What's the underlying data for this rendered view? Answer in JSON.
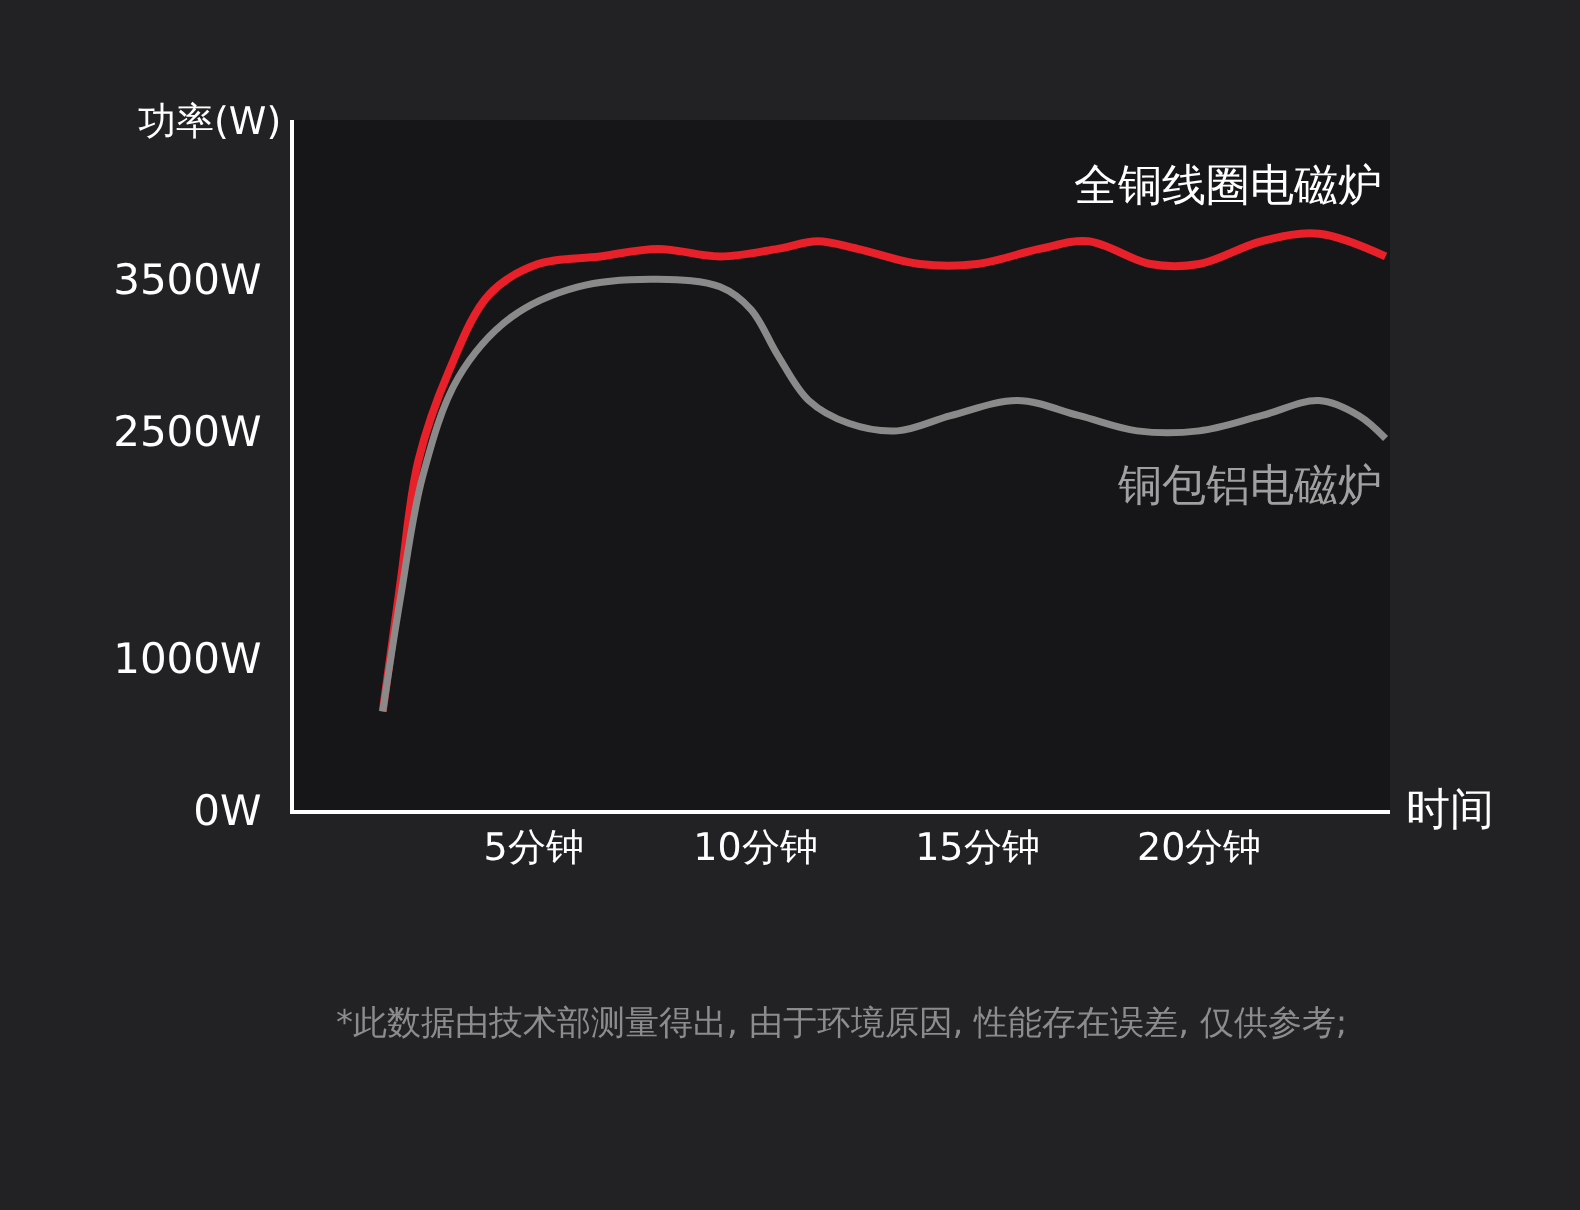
{
  "chart_data": {
    "type": "line",
    "xlabel": "时间",
    "ylabel": "功率(W)",
    "xlim": [
      -0.4,
      24.3
    ],
    "ylim": [
      0,
      4550
    ],
    "xticks": [
      {
        "value": 5,
        "label": "5分钟"
      },
      {
        "value": 10,
        "label": "10分钟"
      },
      {
        "value": 15,
        "label": "15分钟"
      },
      {
        "value": 20,
        "label": "20分钟"
      }
    ],
    "yticks": [
      {
        "value": 0,
        "label": "0W"
      },
      {
        "value": 1000,
        "label": "1000W"
      },
      {
        "value": 2500,
        "label": "2500W"
      },
      {
        "value": 3500,
        "label": "3500W"
      }
    ],
    "grid": false,
    "legend": false,
    "marker": "none",
    "line_style": "solid",
    "series": [
      {
        "name": "全铜线圈电磁炉",
        "color": "#e8202a",
        "x": [
          1.6,
          2.0,
          2.4,
          3.1,
          4.0,
          5.1,
          6.5,
          7.8,
          9.2,
          10.5,
          11.4,
          12.3,
          13.7,
          15.0,
          16.4,
          17.5,
          18.9,
          20.0,
          21.4,
          22.7,
          24.2
        ],
        "values": [
          650,
          1500,
          2300,
          2900,
          3400,
          3600,
          3650,
          3700,
          3650,
          3700,
          3750,
          3700,
          3600,
          3600,
          3700,
          3750,
          3600,
          3600,
          3750,
          3800,
          3650
        ]
      },
      {
        "name": "铜包铝电磁炉",
        "color": "#8a8a8a",
        "x": [
          1.6,
          2.0,
          2.5,
          3.3,
          4.5,
          6.0,
          7.8,
          9.2,
          9.9,
          10.5,
          11.2,
          12.1,
          13.2,
          14.4,
          15.9,
          17.3,
          18.6,
          20.0,
          21.4,
          22.7,
          23.6,
          24.2
        ],
        "values": [
          650,
          1400,
          2200,
          2850,
          3250,
          3450,
          3500,
          3450,
          3300,
          3000,
          2700,
          2550,
          2500,
          2600,
          2700,
          2600,
          2500,
          2500,
          2600,
          2700,
          2600,
          2450
        ]
      }
    ],
    "annotations": [
      "*此数据由技术部测量得出, 由于环境原因, 性能存在误差, 仅供参考;"
    ]
  }
}
